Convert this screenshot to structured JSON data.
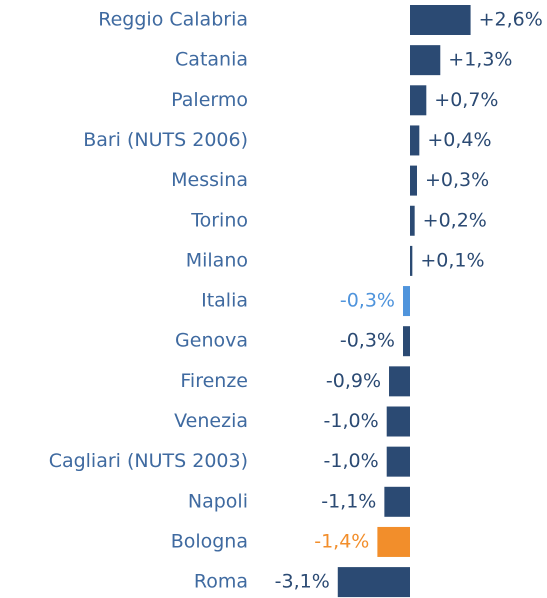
{
  "chart_data": {
    "type": "bar",
    "orientation": "horizontal",
    "categories": [
      "Reggio Calabria",
      "Catania",
      "Palermo",
      "Bari (NUTS 2006)",
      "Messina",
      "Torino",
      "Milano",
      "Italia",
      "Genova",
      "Firenze",
      "Venezia",
      "Cagliari (NUTS 2003)",
      "Napoli",
      "Bologna",
      "Roma"
    ],
    "values": [
      2.6,
      1.3,
      0.7,
      0.4,
      0.3,
      0.2,
      0.1,
      -0.3,
      -0.3,
      -0.9,
      -1.0,
      -1.0,
      -1.1,
      -1.4,
      -3.1
    ],
    "value_labels": [
      "+2,6%",
      "+1,3%",
      "+0,7%",
      "+0,4%",
      "+0,3%",
      "+0,2%",
      "+0,1%",
      "-0,3%",
      "-0,3%",
      "-0,9%",
      "-1,0%",
      "-1,0%",
      "-1,1%",
      "-1,4%",
      "-3,1%"
    ],
    "colors": [
      "#2b4a73",
      "#2b4a73",
      "#2b4a73",
      "#2b4a73",
      "#2b4a73",
      "#2b4a73",
      "#2b4a73",
      "#4f94dc",
      "#2b4a73",
      "#2b4a73",
      "#2b4a73",
      "#2b4a73",
      "#2b4a73",
      "#f28e2b",
      "#2b4a73"
    ],
    "category_color": "#3f6aa0"
  }
}
